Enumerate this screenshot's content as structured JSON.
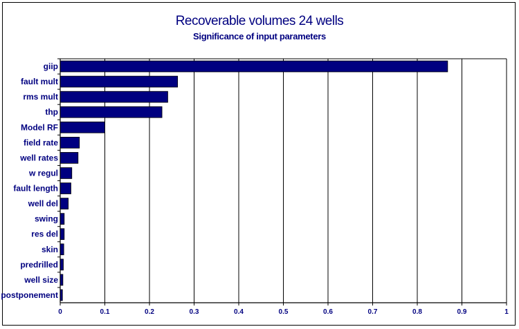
{
  "chart_data": {
    "type": "bar",
    "orientation": "horizontal",
    "title": "Recoverable volumes 24 wells",
    "subtitle": "Significance of input parameters",
    "categories": [
      "giip",
      "fault mult",
      "rms mult",
      "thp",
      "Model RF",
      "field rate",
      "well rates",
      "w regul",
      "fault length",
      "well del",
      "swing",
      "res del",
      "skin",
      "predrilled",
      "well size",
      "postponement"
    ],
    "values": [
      0.868,
      0.263,
      0.241,
      0.228,
      0.1,
      0.043,
      0.04,
      0.026,
      0.024,
      0.018,
      0.009,
      0.009,
      0.008,
      0.007,
      0.006,
      0.005
    ],
    "xlim": [
      0,
      1
    ],
    "xticks": [
      "0",
      "0.1",
      "0.2",
      "0.3",
      "0.4",
      "0.5",
      "0.6",
      "0.7",
      "0.8",
      "0.9",
      "1"
    ],
    "grid": "vertical",
    "xlabel": "",
    "ylabel": "",
    "colors": {
      "bar": "#000080",
      "text": "#000080",
      "grid": "#000000"
    }
  }
}
